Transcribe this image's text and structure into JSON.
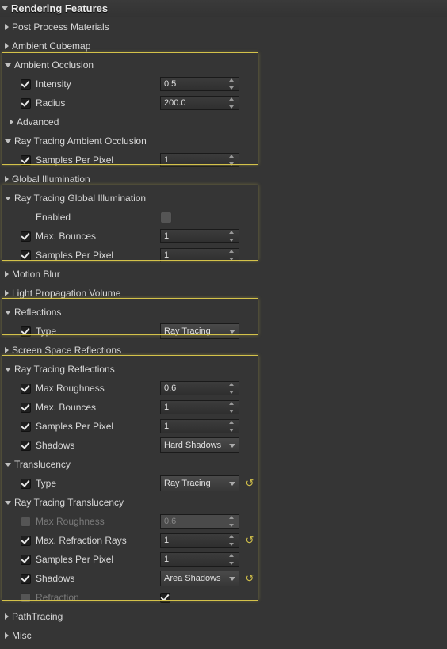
{
  "panel_title": "Rendering Features",
  "colors": {
    "highlight": "#d4c24a",
    "bg": "#353535",
    "text": "#d8d8d8",
    "disabled_text": "#7a7a7a"
  },
  "categories": [
    {
      "id": "ppm",
      "label": "Post Process Materials",
      "expanded": false,
      "props": []
    },
    {
      "id": "acm",
      "label": "Ambient Cubemap",
      "expanded": false,
      "props": []
    },
    {
      "id": "ao",
      "label": "Ambient Occlusion",
      "expanded": true,
      "highlight": 1,
      "props": [
        {
          "id": "ao_int",
          "label": "Intensity",
          "checked": true,
          "type": "num",
          "value": "0.5"
        },
        {
          "id": "ao_rad",
          "label": "Radius",
          "checked": true,
          "type": "num",
          "value": "200.0"
        },
        {
          "id": "ao_adv",
          "label": "Advanced",
          "type": "adv"
        }
      ]
    },
    {
      "id": "rtao",
      "label": "Ray Tracing Ambient Occlusion",
      "expanded": true,
      "highlight": 1,
      "props": [
        {
          "id": "rtao_spp",
          "label": "Samples Per Pixel",
          "checked": true,
          "type": "num",
          "value": "1"
        }
      ]
    },
    {
      "id": "gi",
      "label": "Global Illumination",
      "expanded": false,
      "props": []
    },
    {
      "id": "rtgi",
      "label": "Ray Tracing Global Illumination",
      "expanded": true,
      "highlight": 2,
      "props": [
        {
          "id": "rtgi_en",
          "label": "Enabled",
          "checked": null,
          "type": "bigcheck",
          "value": false
        },
        {
          "id": "rtgi_mb",
          "label": "Max. Bounces",
          "checked": true,
          "type": "num",
          "value": "1"
        },
        {
          "id": "rtgi_spp",
          "label": "Samples Per Pixel",
          "checked": true,
          "type": "num",
          "value": "1"
        }
      ]
    },
    {
      "id": "mb",
      "label": "Motion Blur",
      "expanded": false,
      "props": []
    },
    {
      "id": "lpv",
      "label": "Light Propagation Volume",
      "expanded": false,
      "props": []
    },
    {
      "id": "refl",
      "label": "Reflections",
      "expanded": true,
      "highlight": 3,
      "props": [
        {
          "id": "refl_type",
          "label": "Type",
          "checked": true,
          "type": "drop",
          "value": "Ray Tracing"
        }
      ]
    },
    {
      "id": "ssr",
      "label": "Screen Space Reflections",
      "expanded": false,
      "props": []
    },
    {
      "id": "rtr",
      "label": "Ray Tracing Reflections",
      "expanded": true,
      "highlight": 4,
      "props": [
        {
          "id": "rtr_mr",
          "label": "Max Roughness",
          "checked": true,
          "type": "num",
          "value": "0.6"
        },
        {
          "id": "rtr_mb",
          "label": "Max. Bounces",
          "checked": true,
          "type": "num",
          "value": "1"
        },
        {
          "id": "rtr_spp",
          "label": "Samples Per Pixel",
          "checked": true,
          "type": "num",
          "value": "1"
        },
        {
          "id": "rtr_sh",
          "label": "Shadows",
          "checked": true,
          "type": "drop",
          "value": "Hard Shadows"
        }
      ]
    },
    {
      "id": "trans",
      "label": "Translucency",
      "expanded": true,
      "highlight": 4,
      "props": [
        {
          "id": "trans_type",
          "label": "Type",
          "checked": true,
          "type": "drop",
          "value": "Ray Tracing",
          "reset": true
        }
      ]
    },
    {
      "id": "rtt",
      "label": "Ray Tracing Translucency",
      "expanded": true,
      "highlight": 4,
      "props": [
        {
          "id": "rtt_mr",
          "label": "Max Roughness",
          "checked": false,
          "disabled": true,
          "type": "num",
          "value": "0.6"
        },
        {
          "id": "rtt_mrr",
          "label": "Max. Refraction Rays",
          "checked": true,
          "type": "num",
          "value": "1",
          "reset": true
        },
        {
          "id": "rtt_spp",
          "label": "Samples Per Pixel",
          "checked": true,
          "type": "num",
          "value": "1"
        },
        {
          "id": "rtt_sh",
          "label": "Shadows",
          "checked": true,
          "type": "drop",
          "value": "Area Shadows",
          "reset": true
        },
        {
          "id": "rtt_rf",
          "label": "Refraction",
          "checked": false,
          "disabled": true,
          "type": "bigcheck",
          "value": true
        }
      ]
    },
    {
      "id": "pt",
      "label": "PathTracing",
      "expanded": false,
      "props": []
    },
    {
      "id": "misc",
      "label": "Misc",
      "expanded": false,
      "props": []
    }
  ]
}
